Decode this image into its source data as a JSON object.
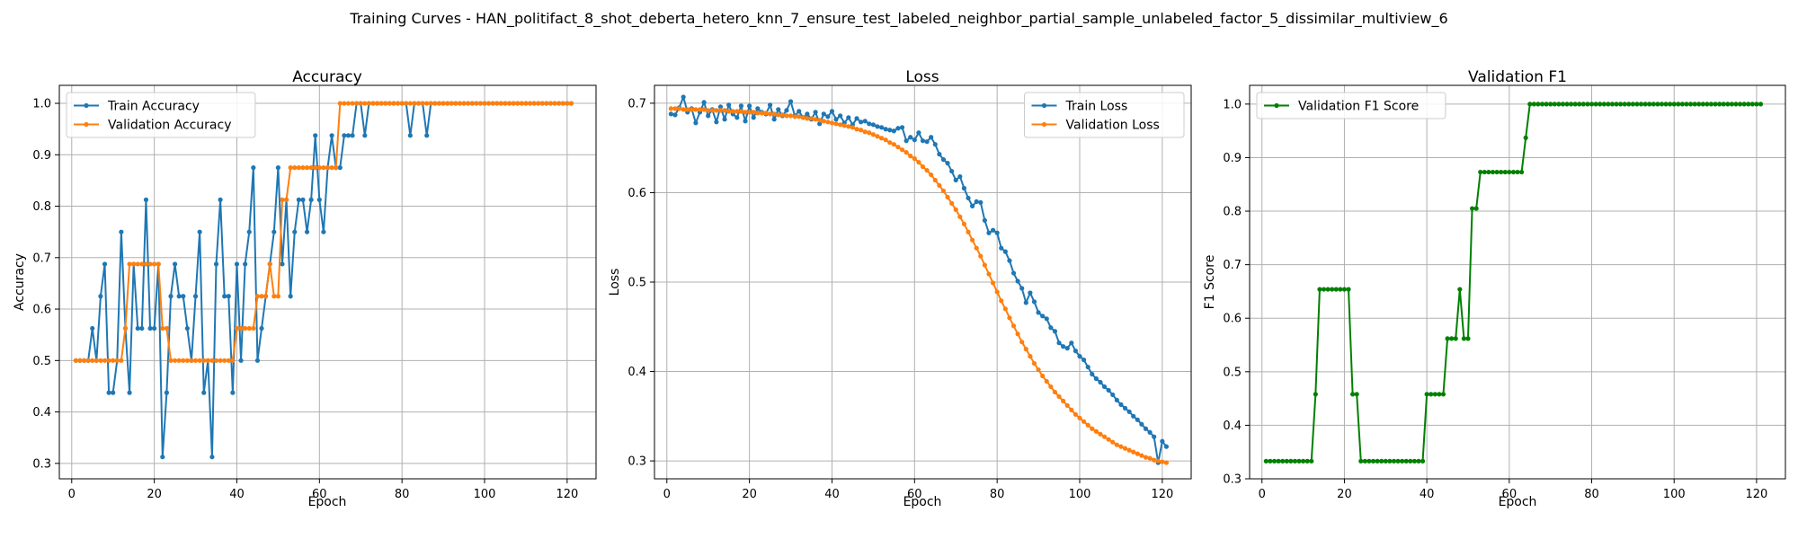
{
  "suptitle": "Training Curves - HAN_politifact_8_shot_deberta_hetero_knn_7_ensure_test_labeled_neighbor_partial_sample_unlabeled_factor_5_dissimilar_multiview_6",
  "colors": {
    "blue": "#1f77b4",
    "orange": "#ff7f0e",
    "green": "#008000",
    "grid": "#b0b0b0"
  },
  "chart_data": [
    {
      "type": "line",
      "title": "Accuracy",
      "xlabel": "Epoch",
      "ylabel": "Accuracy",
      "xlim": [
        -3,
        127
      ],
      "ylim": [
        0.27,
        1.035
      ],
      "xticks": [
        0,
        20,
        40,
        60,
        80,
        100,
        120
      ],
      "yticks": [
        0.3,
        0.4,
        0.5,
        0.6,
        0.7,
        0.8,
        0.9,
        1.0
      ],
      "grid": true,
      "legend_loc": "upper-left",
      "series": [
        {
          "name": "Train Accuracy",
          "color": "#1f77b4",
          "values": [
            0.5,
            0.5,
            0.5,
            0.5,
            0.5625,
            0.5,
            0.625,
            0.6875,
            0.4375,
            0.4375,
            0.5,
            0.75,
            0.5625,
            0.4375,
            0.6875,
            0.5625,
            0.5625,
            0.8125,
            0.5625,
            0.5625,
            0.6875,
            0.3125,
            0.4375,
            0.625,
            0.6875,
            0.625,
            0.625,
            0.5625,
            0.5,
            0.625,
            0.75,
            0.4375,
            0.5,
            0.3125,
            0.6875,
            0.8125,
            0.625,
            0.625,
            0.4375,
            0.6875,
            0.5,
            0.6875,
            0.75,
            0.875,
            0.5,
            0.5625,
            0.625,
            0.6875,
            0.75,
            0.875,
            0.6875,
            0.8125,
            0.625,
            0.75,
            0.8125,
            0.8125,
            0.75,
            0.8125,
            0.9375,
            0.8125,
            0.75,
            0.875,
            0.9375,
            0.875,
            0.875,
            0.9375,
            0.9375,
            0.9375,
            1.0,
            1.0,
            0.9375,
            1.0,
            1.0,
            1.0,
            1.0,
            1.0,
            1.0,
            1.0,
            1.0,
            1.0,
            1.0,
            0.9375,
            1.0,
            1.0,
            1.0,
            0.9375,
            1.0,
            1.0,
            1.0,
            1.0,
            1.0,
            1.0,
            1.0,
            1.0,
            1.0,
            1.0,
            1.0,
            1.0,
            1.0,
            1.0,
            1.0,
            1.0,
            1.0,
            1.0,
            1.0,
            1.0,
            1.0,
            1.0,
            1.0,
            1.0,
            1.0,
            1.0,
            1.0,
            1.0,
            1.0,
            1.0,
            1.0,
            1.0,
            1.0,
            1.0,
            1.0
          ]
        },
        {
          "name": "Validation Accuracy",
          "color": "#ff7f0e",
          "values": [
            0.5,
            0.5,
            0.5,
            0.5,
            0.5,
            0.5,
            0.5,
            0.5,
            0.5,
            0.5,
            0.5,
            0.5,
            0.5625,
            0.6875,
            0.6875,
            0.6875,
            0.6875,
            0.6875,
            0.6875,
            0.6875,
            0.6875,
            0.5625,
            0.5625,
            0.5,
            0.5,
            0.5,
            0.5,
            0.5,
            0.5,
            0.5,
            0.5,
            0.5,
            0.5,
            0.5,
            0.5,
            0.5,
            0.5,
            0.5,
            0.5,
            0.5625,
            0.5625,
            0.5625,
            0.5625,
            0.5625,
            0.625,
            0.625,
            0.625,
            0.6875,
            0.625,
            0.625,
            0.8125,
            0.8125,
            0.875,
            0.875,
            0.875,
            0.875,
            0.875,
            0.875,
            0.875,
            0.875,
            0.875,
            0.875,
            0.875,
            0.875,
            1.0,
            1.0,
            1.0,
            1.0,
            1.0,
            1.0,
            1.0,
            1.0,
            1.0,
            1.0,
            1.0,
            1.0,
            1.0,
            1.0,
            1.0,
            1.0,
            1.0,
            1.0,
            1.0,
            1.0,
            1.0,
            1.0,
            1.0,
            1.0,
            1.0,
            1.0,
            1.0,
            1.0,
            1.0,
            1.0,
            1.0,
            1.0,
            1.0,
            1.0,
            1.0,
            1.0,
            1.0,
            1.0,
            1.0,
            1.0,
            1.0,
            1.0,
            1.0,
            1.0,
            1.0,
            1.0,
            1.0,
            1.0,
            1.0,
            1.0,
            1.0,
            1.0,
            1.0,
            1.0,
            1.0,
            1.0,
            1.0
          ]
        }
      ]
    },
    {
      "type": "line",
      "title": "Loss",
      "xlabel": "Epoch",
      "ylabel": "Loss",
      "xlim": [
        -3,
        127
      ],
      "ylim": [
        0.28,
        0.72
      ],
      "xticks": [
        0,
        20,
        40,
        60,
        80,
        100,
        120
      ],
      "yticks": [
        0.3,
        0.4,
        0.5,
        0.6,
        0.7
      ],
      "grid": true,
      "legend_loc": "upper-right",
      "series": [
        {
          "name": "Train Loss",
          "color": "#1f77b4",
          "values": [
            0.688,
            0.687,
            0.695,
            0.707,
            0.69,
            0.694,
            0.678,
            0.69,
            0.701,
            0.686,
            0.693,
            0.679,
            0.696,
            0.682,
            0.698,
            0.688,
            0.684,
            0.697,
            0.68,
            0.697,
            0.684,
            0.694,
            0.69,
            0.688,
            0.698,
            0.682,
            0.693,
            0.686,
            0.692,
            0.702,
            0.686,
            0.691,
            0.684,
            0.688,
            0.682,
            0.69,
            0.677,
            0.688,
            0.685,
            0.691,
            0.682,
            0.686,
            0.678,
            0.684,
            0.676,
            0.683,
            0.679,
            0.68,
            0.677,
            0.676,
            0.674,
            0.673,
            0.671,
            0.67,
            0.669,
            0.672,
            0.673,
            0.658,
            0.662,
            0.659,
            0.667,
            0.658,
            0.657,
            0.662,
            0.654,
            0.643,
            0.637,
            0.633,
            0.624,
            0.614,
            0.618,
            0.605,
            0.594,
            0.585,
            0.59,
            0.589,
            0.569,
            0.555,
            0.558,
            0.555,
            0.538,
            0.534,
            0.524,
            0.51,
            0.501,
            0.493,
            0.477,
            0.488,
            0.478,
            0.466,
            0.462,
            0.459,
            0.449,
            0.445,
            0.432,
            0.428,
            0.426,
            0.432,
            0.423,
            0.417,
            0.413,
            0.405,
            0.397,
            0.392,
            0.388,
            0.383,
            0.379,
            0.374,
            0.368,
            0.363,
            0.359,
            0.355,
            0.35,
            0.346,
            0.341,
            0.336,
            0.332,
            0.327,
            0.298,
            0.322,
            0.316
          ]
        },
        {
          "name": "Validation Loss",
          "color": "#ff7f0e",
          "values": [
            0.694,
            0.694,
            0.694,
            0.693,
            0.693,
            0.693,
            0.693,
            0.693,
            0.693,
            0.692,
            0.692,
            0.692,
            0.692,
            0.692,
            0.691,
            0.691,
            0.691,
            0.691,
            0.69,
            0.69,
            0.69,
            0.689,
            0.689,
            0.689,
            0.688,
            0.688,
            0.687,
            0.687,
            0.686,
            0.686,
            0.685,
            0.685,
            0.684,
            0.683,
            0.683,
            0.682,
            0.681,
            0.68,
            0.679,
            0.678,
            0.677,
            0.676,
            0.675,
            0.674,
            0.673,
            0.671,
            0.67,
            0.668,
            0.667,
            0.665,
            0.663,
            0.661,
            0.659,
            0.656,
            0.654,
            0.651,
            0.648,
            0.645,
            0.641,
            0.638,
            0.634,
            0.629,
            0.625,
            0.62,
            0.614,
            0.608,
            0.602,
            0.595,
            0.588,
            0.581,
            0.573,
            0.565,
            0.556,
            0.547,
            0.538,
            0.529,
            0.519,
            0.509,
            0.499,
            0.489,
            0.479,
            0.47,
            0.46,
            0.451,
            0.442,
            0.433,
            0.425,
            0.417,
            0.409,
            0.402,
            0.395,
            0.389,
            0.383,
            0.377,
            0.372,
            0.367,
            0.362,
            0.357,
            0.352,
            0.348,
            0.344,
            0.34,
            0.336,
            0.333,
            0.33,
            0.327,
            0.324,
            0.321,
            0.318,
            0.316,
            0.314,
            0.312,
            0.31,
            0.308,
            0.306,
            0.304,
            0.303,
            0.301,
            0.3,
            0.299,
            0.298
          ]
        }
      ]
    },
    {
      "type": "line",
      "title": "Validation F1",
      "xlabel": "Epoch",
      "ylabel": "F1 Score",
      "xlim": [
        -3,
        127
      ],
      "ylim": [
        0.3,
        1.035
      ],
      "xticks": [
        0,
        20,
        40,
        60,
        80,
        100,
        120
      ],
      "yticks": [
        0.3,
        0.4,
        0.5,
        0.6,
        0.7,
        0.8,
        0.9,
        1.0
      ],
      "grid": true,
      "legend_loc": "upper-left",
      "series": [
        {
          "name": "Validation F1 Score",
          "color": "#008000",
          "values": [
            0.333,
            0.333,
            0.333,
            0.333,
            0.333,
            0.333,
            0.333,
            0.333,
            0.333,
            0.333,
            0.333,
            0.333,
            0.458,
            0.654,
            0.654,
            0.654,
            0.654,
            0.654,
            0.654,
            0.654,
            0.654,
            0.458,
            0.458,
            0.333,
            0.333,
            0.333,
            0.333,
            0.333,
            0.333,
            0.333,
            0.333,
            0.333,
            0.333,
            0.333,
            0.333,
            0.333,
            0.333,
            0.333,
            0.333,
            0.458,
            0.458,
            0.458,
            0.458,
            0.458,
            0.562,
            0.562,
            0.562,
            0.654,
            0.562,
            0.562,
            0.805,
            0.805,
            0.873,
            0.873,
            0.873,
            0.873,
            0.873,
            0.873,
            0.873,
            0.873,
            0.873,
            0.873,
            0.873,
            0.937,
            1.0,
            1.0,
            1.0,
            1.0,
            1.0,
            1.0,
            1.0,
            1.0,
            1.0,
            1.0,
            1.0,
            1.0,
            1.0,
            1.0,
            1.0,
            1.0,
            1.0,
            1.0,
            1.0,
            1.0,
            1.0,
            1.0,
            1.0,
            1.0,
            1.0,
            1.0,
            1.0,
            1.0,
            1.0,
            1.0,
            1.0,
            1.0,
            1.0,
            1.0,
            1.0,
            1.0,
            1.0,
            1.0,
            1.0,
            1.0,
            1.0,
            1.0,
            1.0,
            1.0,
            1.0,
            1.0,
            1.0,
            1.0,
            1.0,
            1.0,
            1.0,
            1.0,
            1.0,
            1.0,
            1.0,
            1.0,
            1.0
          ]
        }
      ]
    }
  ]
}
